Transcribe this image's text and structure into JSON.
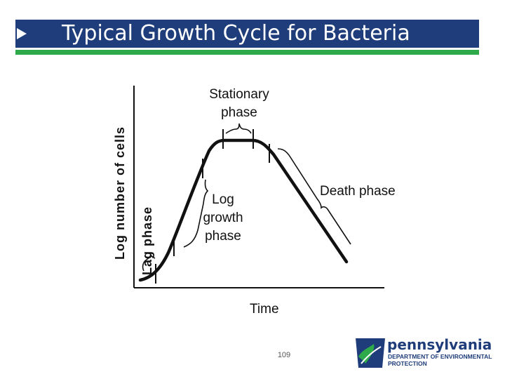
{
  "slide": {
    "title": "Typical Growth Cycle for Bacteria",
    "page_number": "109",
    "colors": {
      "title_bar": "#1f3d7a",
      "accent_bar": "#2eaa4a",
      "curve": "#111111"
    }
  },
  "diagram": {
    "y_axis_label": "Log number of cells",
    "x_axis_label": "Time",
    "phases": {
      "lag": "Lag phase",
      "log_line1": "Log",
      "log_line2": "growth",
      "log_line3": "phase",
      "stationary_line1": "Stationary",
      "stationary_line2": "phase",
      "death": "Death phase"
    }
  },
  "logo": {
    "name": "pennsylvania",
    "department_line1": "DEPARTMENT OF ENVIRONMENTAL",
    "department_line2": "PROTECTION",
    "icon": "keystone-state-icon"
  }
}
